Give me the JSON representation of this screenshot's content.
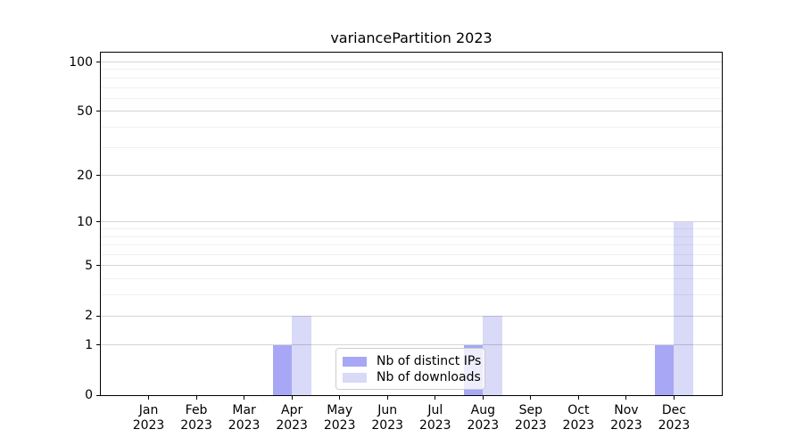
{
  "chart_data": {
    "type": "bar",
    "title": "variancePartition 2023",
    "categories": [
      {
        "month": "Jan",
        "year": "2023"
      },
      {
        "month": "Feb",
        "year": "2023"
      },
      {
        "month": "Mar",
        "year": "2023"
      },
      {
        "month": "Apr",
        "year": "2023"
      },
      {
        "month": "May",
        "year": "2023"
      },
      {
        "month": "Jun",
        "year": "2023"
      },
      {
        "month": "Jul",
        "year": "2023"
      },
      {
        "month": "Aug",
        "year": "2023"
      },
      {
        "month": "Sep",
        "year": "2023"
      },
      {
        "month": "Oct",
        "year": "2023"
      },
      {
        "month": "Nov",
        "year": "2023"
      },
      {
        "month": "Dec",
        "year": "2023"
      }
    ],
    "series": [
      {
        "key": "distinct-ips",
        "name": "Nb of distinct IPs",
        "color": "#a7a7f5",
        "values": [
          0,
          0,
          0,
          1,
          0,
          0,
          0,
          1,
          0,
          0,
          0,
          1
        ]
      },
      {
        "key": "downloads",
        "name": "Nb of downloads",
        "color": "#d9d9f8",
        "values": [
          0,
          0,
          0,
          2,
          0,
          0,
          0,
          2,
          0,
          0,
          0,
          10
        ]
      }
    ],
    "xlabel": "",
    "ylabel": "",
    "yscale": "log1p",
    "ylim": [
      0,
      114
    ],
    "yticks": [
      0,
      1,
      2,
      5,
      10,
      20,
      50,
      100
    ],
    "yticks_minor": [
      3,
      4,
      6,
      7,
      8,
      9,
      30,
      40,
      60,
      70,
      80,
      90
    ],
    "grid": true,
    "legend_position": "lower-center"
  }
}
